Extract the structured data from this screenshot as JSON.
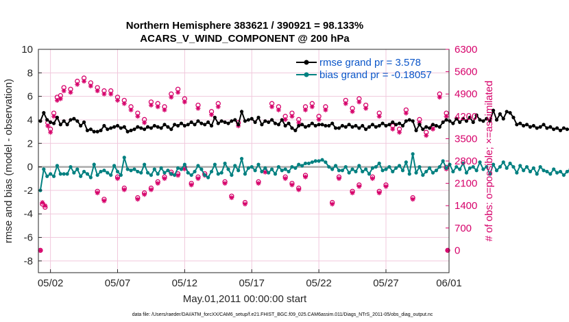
{
  "chart_data": {
    "type": "line",
    "title": "Northern Hemisphere 383621 / 390921 = 98.133%",
    "subtitle": "ACARS_V_WIND_COMPONENT @ 200 hPa",
    "xlabel": "May.01,2011 00:00:00 start",
    "ylabel_left": "rmse and bias (model - observation)",
    "ylabel_right": "# of obs: o=possible; ×=assimilated",
    "footnote": "data file: /Users/raeder/DAI/ATM_forcXX/CAM6_setup/f.e21.FHIST_BGC.f09_025.CAM6assim.011/Diags_NTrS_2011-05/obs_diag_output.nc",
    "xlim": [
      0.6,
      31.2
    ],
    "ylim_left": [
      -9,
      10
    ],
    "ylim_right": [
      -700,
      6300
    ],
    "x_ticks": [
      1.5,
      6.5,
      11.5,
      16.5,
      21.5,
      26.5,
      31.5
    ],
    "x_tick_labels": [
      "05/02",
      "05/07",
      "05/12",
      "05/17",
      "05/22",
      "05/27",
      "06/01"
    ],
    "left_ticks": [
      -8,
      -6,
      -4,
      -2,
      0,
      2,
      4,
      6,
      8,
      10
    ],
    "left_tick_labels": [
      "-8",
      "-6",
      "-4",
      "-2",
      "0",
      "2",
      "4",
      "6",
      "8",
      "10"
    ],
    "right_ticks": [
      0,
      700,
      1400,
      2100,
      2800,
      3500,
      4200,
      4900,
      5600,
      6300
    ],
    "right_tick_labels": [
      "0",
      "700",
      "1400",
      "2100",
      "2800",
      "3500",
      "4200",
      "4900",
      "5600",
      "6300"
    ],
    "colors": {
      "rmse": "#000000",
      "bias": "#008080",
      "obs": "#d6006a",
      "zero_line": "#aaaaaa",
      "legend_text": "#0a55c8"
    },
    "series": [
      {
        "name": "rmse grand pr = 3.578",
        "axis": "left",
        "x_start": 0.75,
        "x_step": 0.25,
        "values": [
          3.9,
          4.6,
          4.0,
          3.8,
          3.7,
          4.2,
          3.6,
          3.9,
          3.6,
          4.0,
          4.1,
          3.9,
          3.5,
          3.8,
          3.1,
          3.2,
          3.0,
          3.0,
          3.1,
          3.5,
          3.2,
          3.3,
          3.4,
          3.5,
          3.3,
          3.4,
          3.0,
          3.1,
          3.2,
          3.4,
          3.3,
          3.2,
          3.4,
          3.3,
          3.5,
          3.4,
          3.3,
          3.6,
          3.4,
          3.2,
          3.6,
          3.5,
          3.7,
          3.5,
          3.6,
          3.8,
          3.6,
          3.9,
          3.7,
          3.6,
          3.8,
          3.5,
          4.2,
          3.7,
          3.9,
          3.8,
          3.7,
          3.9,
          4.0,
          3.6,
          4.7,
          3.9,
          4.0,
          4.1,
          3.8,
          4.2,
          3.6,
          3.9,
          3.8,
          4.0,
          3.7,
          3.6,
          4.0,
          3.5,
          3.7,
          3.3,
          3.1,
          3.5,
          3.6,
          3.4,
          3.5,
          3.7,
          3.5,
          3.6,
          3.6,
          3.5,
          3.5,
          3.7,
          3.3,
          3.3,
          3.5,
          3.4,
          3.6,
          3.4,
          3.5,
          3.3,
          3.5,
          3.2,
          3.4,
          3.6,
          3.4,
          3.5,
          3.7,
          3.5,
          3.6,
          3.8,
          3.6,
          3.7,
          3.5,
          3.9,
          4.0,
          3.9,
          3.1,
          3.6,
          3.2,
          3.4,
          3.3,
          3.6,
          3.5,
          3.4,
          3.8,
          4.0,
          3.9,
          3.7,
          4.1,
          3.8,
          4.1,
          3.9,
          4.2,
          3.8,
          4.4,
          4.0,
          3.9,
          4.1,
          3.9,
          4.8,
          4.0,
          4.5,
          4.1,
          4.7,
          4.6,
          4.2,
          3.6,
          3.7,
          3.5,
          3.6,
          3.4,
          3.5,
          3.3,
          3.4,
          3.6,
          3.3,
          3.4,
          3.2,
          3.3,
          3.1,
          3.3,
          3.2,
          3.2,
          3.3,
          3.1,
          3.2,
          3.5,
          3.2,
          3.4,
          3.7,
          4.1,
          3.8,
          3.9,
          3.6,
          3.3,
          3.5,
          3.7,
          3.5,
          3.6,
          3.5
        ]
      },
      {
        "name": "bias grand pr = -0.18057",
        "axis": "left",
        "x_start": 0.75,
        "x_step": 0.25,
        "values": [
          -2.0,
          -0.2,
          -0.8,
          -0.6,
          -0.8,
          0.1,
          -0.6,
          -0.6,
          -0.6,
          0.0,
          -0.5,
          -0.2,
          -0.8,
          -0.4,
          -0.6,
          -0.9,
          0.2,
          -0.7,
          -0.4,
          -0.3,
          -0.5,
          -0.7,
          0.1,
          -0.4,
          -0.7,
          0.8,
          -0.2,
          -0.3,
          -0.2,
          -0.4,
          -0.5,
          0.2,
          -0.5,
          -0.7,
          -0.2,
          -0.6,
          -0.1,
          -0.5,
          -0.3,
          -0.6,
          -0.7,
          -0.1,
          -0.2,
          0.2,
          -0.5,
          -0.7,
          -0.4,
          0.1,
          -0.2,
          -0.7,
          -0.9,
          -0.4,
          0.2,
          -0.6,
          -0.5,
          0.3,
          -0.2,
          -0.7,
          0.1,
          -0.3,
          0.7,
          -0.6,
          -0.1,
          0.0,
          -0.3,
          0.2,
          -0.4,
          -0.1,
          -0.5,
          -0.2,
          -0.6,
          0.0,
          -0.3,
          -0.2,
          -0.4,
          0.0,
          -0.1,
          0.2,
          0.1,
          0.3,
          0.3,
          0.4,
          0.5,
          0.5,
          0.6,
          0.4,
          0.0,
          -0.2,
          0.1,
          -0.3,
          -0.3,
          0.0,
          -0.5,
          -0.2,
          -0.4,
          0.1,
          -0.4,
          -0.2,
          -0.6,
          -0.1,
          0.0,
          0.3,
          -0.3,
          -0.2,
          0.0,
          -0.4,
          -0.1,
          0.1,
          -0.3,
          0.4,
          -0.6,
          1.1,
          -0.5,
          0.0,
          -0.7,
          -0.4,
          -0.1,
          -0.5,
          -0.3,
          0.0,
          0.5,
          -0.1,
          0.2,
          -0.4,
          0.0,
          -0.2,
          0.3,
          -0.5,
          -0.1,
          0.0,
          -0.3,
          0.4,
          -0.2,
          0.0,
          -0.6,
          0.2,
          -0.3,
          0.0,
          0.4,
          -0.1,
          0.3,
          0.0,
          -0.5,
          0.1,
          -0.3,
          0.0,
          -0.4,
          -0.1,
          -0.6,
          0.0,
          -0.3,
          -0.4,
          -0.6,
          -0.2,
          -0.5,
          -0.4,
          -0.7,
          -0.4,
          -0.2,
          0.1,
          -0.3,
          -0.2,
          -0.1,
          -0.4,
          -0.5,
          -0.2,
          -0.4,
          -0.8,
          -0.6,
          -0.3,
          -0.4,
          -0.1,
          -0.3,
          -0.1
        ]
      },
      {
        "name": "obs possible",
        "axis": "right",
        "marker": "o",
        "points": [
          [
            0.75,
            0
          ],
          [
            0.9,
            1450
          ],
          [
            1.1,
            1350
          ],
          [
            1.3,
            4000
          ],
          [
            1.5,
            3800
          ],
          [
            1.75,
            4300
          ],
          [
            2.0,
            4800
          ],
          [
            2.25,
            4850
          ],
          [
            2.5,
            5100
          ],
          [
            3.0,
            5050
          ],
          [
            3.5,
            5300
          ],
          [
            4.0,
            5400
          ],
          [
            4.5,
            5250
          ],
          [
            5.0,
            5100
          ],
          [
            5.5,
            5000
          ],
          [
            5.0,
            1850
          ],
          [
            5.5,
            1600
          ],
          [
            6.0,
            5000
          ],
          [
            6.5,
            4800
          ],
          [
            7.0,
            4700
          ],
          [
            6.5,
            2300
          ],
          [
            7.0,
            1950
          ],
          [
            7.5,
            4500
          ],
          [
            8.0,
            4300
          ],
          [
            8.5,
            4100
          ],
          [
            9.0,
            4650
          ],
          [
            9.5,
            4600
          ],
          [
            10.0,
            4500
          ],
          [
            10.5,
            4900
          ],
          [
            11.0,
            5050
          ],
          [
            11.5,
            4750
          ],
          [
            8.0,
            1650
          ],
          [
            8.5,
            1800
          ],
          [
            9.0,
            1950
          ],
          [
            9.5,
            2150
          ],
          [
            10.0,
            2300
          ],
          [
            10.5,
            2450
          ],
          [
            11.0,
            2400
          ],
          [
            11.5,
            2600
          ],
          [
            12.5,
            4550
          ],
          [
            13.5,
            4350
          ],
          [
            14.0,
            4600
          ],
          [
            15.5,
            4000
          ],
          [
            12.0,
            2100
          ],
          [
            12.5,
            2300
          ],
          [
            13.0,
            2400
          ],
          [
            14.5,
            2150
          ],
          [
            15.0,
            1700
          ],
          [
            16.0,
            1500
          ],
          [
            17.0,
            2150
          ],
          [
            17.5,
            2500
          ],
          [
            18.0,
            4600
          ],
          [
            18.5,
            4500
          ],
          [
            19.0,
            4200
          ],
          [
            19.5,
            4300
          ],
          [
            20.0,
            4100
          ],
          [
            20.5,
            4500
          ],
          [
            19.0,
            2300
          ],
          [
            19.5,
            2100
          ],
          [
            20.0,
            1950
          ],
          [
            20.5,
            2350
          ],
          [
            21.0,
            4600
          ],
          [
            21.5,
            4200
          ],
          [
            22.0,
            4500
          ],
          [
            22.5,
            1500
          ],
          [
            23.0,
            2300
          ],
          [
            23.5,
            4700
          ],
          [
            24.0,
            4450
          ],
          [
            24.5,
            4750
          ],
          [
            25.0,
            4550
          ],
          [
            24.0,
            1850
          ],
          [
            24.5,
            2050
          ],
          [
            25.5,
            2300
          ],
          [
            26.0,
            4300
          ],
          [
            26.0,
            1850
          ],
          [
            26.5,
            2050
          ],
          [
            27.0,
            3900
          ],
          [
            27.5,
            3800
          ],
          [
            28.0,
            4400
          ],
          [
            28.5,
            1650
          ],
          [
            29.0,
            4100
          ],
          [
            29.5,
            3700
          ],
          [
            30.0,
            3900
          ],
          [
            30.5,
            4900
          ],
          [
            31.0,
            4300
          ],
          [
            31.0,
            2600
          ],
          [
            31.1,
            0
          ]
        ]
      },
      {
        "name": "obs assimilated",
        "axis": "right",
        "marker": "*",
        "points": [
          [
            0.75,
            0
          ],
          [
            0.9,
            1500
          ],
          [
            1.1,
            1400
          ],
          [
            1.3,
            3900
          ],
          [
            1.5,
            3700
          ],
          [
            1.75,
            4200
          ],
          [
            2.0,
            4700
          ],
          [
            2.25,
            4750
          ],
          [
            2.5,
            5000
          ],
          [
            3.0,
            4950
          ],
          [
            3.5,
            5200
          ],
          [
            4.0,
            5300
          ],
          [
            4.5,
            5150
          ],
          [
            5.0,
            5000
          ],
          [
            5.5,
            4900
          ],
          [
            5.0,
            1800
          ],
          [
            5.5,
            1550
          ],
          [
            6.0,
            4900
          ],
          [
            6.5,
            4700
          ],
          [
            7.0,
            4600
          ],
          [
            6.5,
            2250
          ],
          [
            7.0,
            1900
          ],
          [
            7.5,
            4400
          ],
          [
            8.0,
            4200
          ],
          [
            8.5,
            4000
          ],
          [
            9.0,
            4550
          ],
          [
            9.5,
            4500
          ],
          [
            10.0,
            4400
          ],
          [
            10.5,
            4800
          ],
          [
            11.0,
            4950
          ],
          [
            11.5,
            4650
          ],
          [
            8.0,
            1600
          ],
          [
            8.5,
            1750
          ],
          [
            9.0,
            1900
          ],
          [
            9.5,
            2100
          ],
          [
            10.0,
            2250
          ],
          [
            10.5,
            2400
          ],
          [
            11.0,
            2350
          ],
          [
            11.5,
            2550
          ],
          [
            12.5,
            4450
          ],
          [
            13.5,
            4250
          ],
          [
            14.0,
            4500
          ],
          [
            15.5,
            3900
          ],
          [
            12.0,
            2050
          ],
          [
            12.5,
            2250
          ],
          [
            13.0,
            2350
          ],
          [
            14.5,
            2100
          ],
          [
            15.0,
            1650
          ],
          [
            16.0,
            1450
          ],
          [
            17.0,
            2100
          ],
          [
            17.5,
            2450
          ],
          [
            18.0,
            4500
          ],
          [
            18.5,
            4400
          ],
          [
            19.0,
            4100
          ],
          [
            19.5,
            4200
          ],
          [
            20.0,
            4000
          ],
          [
            20.5,
            4400
          ],
          [
            19.0,
            2250
          ],
          [
            19.5,
            2050
          ],
          [
            20.0,
            1900
          ],
          [
            20.5,
            2300
          ],
          [
            21.0,
            4500
          ],
          [
            21.5,
            4100
          ],
          [
            22.0,
            4400
          ],
          [
            22.5,
            1450
          ],
          [
            23.0,
            2250
          ],
          [
            23.5,
            4600
          ],
          [
            24.0,
            4350
          ],
          [
            24.5,
            4650
          ],
          [
            25.0,
            4450
          ],
          [
            24.0,
            1800
          ],
          [
            24.5,
            2000
          ],
          [
            25.5,
            2250
          ],
          [
            26.0,
            4200
          ],
          [
            26.0,
            1800
          ],
          [
            26.5,
            2000
          ],
          [
            27.0,
            3800
          ],
          [
            27.5,
            3700
          ],
          [
            28.0,
            4300
          ],
          [
            28.5,
            1600
          ],
          [
            29.0,
            4000
          ],
          [
            29.5,
            3600
          ],
          [
            30.0,
            3800
          ],
          [
            30.5,
            4800
          ],
          [
            31.0,
            4200
          ],
          [
            31.0,
            2550
          ],
          [
            31.1,
            0
          ]
        ]
      }
    ]
  }
}
